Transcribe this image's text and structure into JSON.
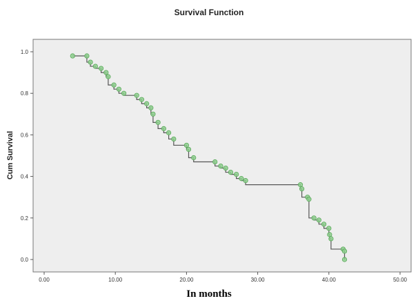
{
  "chart_data": {
    "type": "line",
    "title": "Survival Function",
    "xlabel": "In months",
    "ylabel": "Cum Survival",
    "xlim": [
      0,
      50
    ],
    "ylim": [
      0,
      1.0
    ],
    "xticks": [
      "0.00",
      "10.00",
      "20.00",
      "30.00",
      "40.00",
      "50.00"
    ],
    "yticks": [
      "0.0",
      "0.2",
      "0.4",
      "0.6",
      "0.8",
      "1.0"
    ],
    "grid": false,
    "colors": {
      "plot_bg": "#eeeeee",
      "line": "#555555",
      "marker": "#8ecf8e",
      "marker_edge": "#5aa85a"
    },
    "series": [
      {
        "steps": [
          [
            4,
            0.98
          ],
          [
            6,
            0.95
          ],
          [
            6.5,
            0.93
          ],
          [
            7.2,
            0.92
          ],
          [
            8,
            0.9
          ],
          [
            8.7,
            0.88
          ],
          [
            9,
            0.84
          ],
          [
            9.8,
            0.82
          ],
          [
            10.5,
            0.8
          ],
          [
            11.2,
            0.79
          ],
          [
            13,
            0.77
          ],
          [
            13.7,
            0.75
          ],
          [
            14.4,
            0.73
          ],
          [
            15,
            0.7
          ],
          [
            15.3,
            0.66
          ],
          [
            16,
            0.63
          ],
          [
            16.8,
            0.61
          ],
          [
            17.5,
            0.58
          ],
          [
            18.2,
            0.55
          ],
          [
            20,
            0.53
          ],
          [
            20.3,
            0.49
          ],
          [
            21,
            0.47
          ],
          [
            24,
            0.45
          ],
          [
            24.8,
            0.44
          ],
          [
            25.5,
            0.42
          ],
          [
            26.2,
            0.41
          ],
          [
            27,
            0.39
          ],
          [
            27.7,
            0.38
          ],
          [
            28.3,
            0.36
          ],
          [
            36,
            0.34
          ],
          [
            36.2,
            0.3
          ],
          [
            37,
            0.29
          ],
          [
            37.2,
            0.2
          ],
          [
            37.9,
            0.19
          ],
          [
            38.6,
            0.17
          ],
          [
            39.3,
            0.15
          ],
          [
            40,
            0.12
          ],
          [
            40.1,
            0.1
          ],
          [
            40.3,
            0.05
          ],
          [
            42,
            0.04
          ],
          [
            42.2,
            0.0
          ]
        ],
        "censored": [
          [
            4,
            0.98
          ],
          [
            6,
            0.98
          ],
          [
            6.5,
            0.95
          ],
          [
            7.2,
            0.93
          ],
          [
            8,
            0.92
          ],
          [
            8.7,
            0.9
          ],
          [
            9,
            0.88
          ],
          [
            9.8,
            0.84
          ],
          [
            10.5,
            0.82
          ],
          [
            11.2,
            0.8
          ],
          [
            13,
            0.79
          ],
          [
            13.7,
            0.77
          ],
          [
            14.4,
            0.75
          ],
          [
            15,
            0.73
          ],
          [
            15.3,
            0.7
          ],
          [
            16,
            0.66
          ],
          [
            16.8,
            0.63
          ],
          [
            17.5,
            0.61
          ],
          [
            18.2,
            0.58
          ],
          [
            20,
            0.55
          ],
          [
            20.3,
            0.53
          ],
          [
            21,
            0.49
          ],
          [
            24,
            0.47
          ],
          [
            24.8,
            0.45
          ],
          [
            25.5,
            0.44
          ],
          [
            26.2,
            0.42
          ],
          [
            27,
            0.41
          ],
          [
            27.7,
            0.39
          ],
          [
            28.3,
            0.38
          ],
          [
            36,
            0.36
          ],
          [
            36.2,
            0.34
          ],
          [
            37,
            0.3
          ],
          [
            37.2,
            0.29
          ],
          [
            37.9,
            0.2
          ],
          [
            38.6,
            0.19
          ],
          [
            39.3,
            0.17
          ],
          [
            40,
            0.15
          ],
          [
            40.1,
            0.12
          ],
          [
            40.3,
            0.1
          ],
          [
            42,
            0.05
          ],
          [
            42.2,
            0.04
          ],
          [
            42.2,
            0.0
          ]
        ]
      }
    ]
  }
}
